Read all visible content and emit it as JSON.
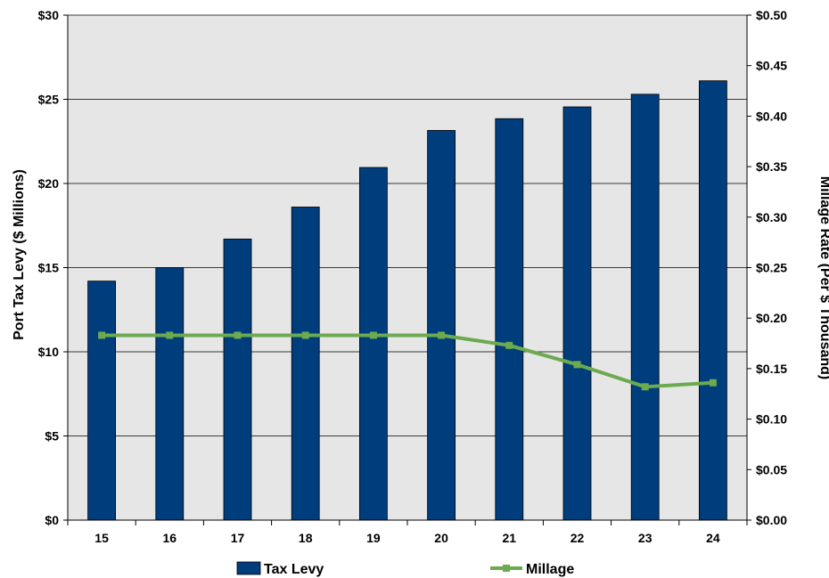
{
  "chart_data": {
    "type": "bar",
    "categories": [
      "15",
      "16",
      "17",
      "18",
      "19",
      "20",
      "21",
      "22",
      "23",
      "24"
    ],
    "series": [
      {
        "name": "Tax Levy",
        "type": "bar",
        "axis": "left",
        "values": [
          14.2,
          15.0,
          16.7,
          18.6,
          20.95,
          23.15,
          23.85,
          24.55,
          25.3,
          26.1
        ]
      },
      {
        "name": "Millage",
        "type": "line",
        "axis": "right",
        "values": [
          0.183,
          0.183,
          0.183,
          0.183,
          0.183,
          0.183,
          0.173,
          0.154,
          0.132,
          0.136
        ]
      }
    ],
    "ylabel": "Port Tax Levy ($ Millions)",
    "y2label": "Millage Rate (Per $ Thousand)",
    "ylim": [
      0,
      30
    ],
    "y2lim": [
      0,
      0.5
    ],
    "yticks": [
      "$0",
      "$5",
      "$10",
      "$15",
      "$20",
      "$25",
      "$30"
    ],
    "y2ticks": [
      "$0.00",
      "$0.05",
      "$0.10",
      "$0.15",
      "$0.20",
      "$0.25",
      "$0.30",
      "$0.35",
      "$0.40",
      "$0.45",
      "$0.50"
    ],
    "grid": true,
    "legend": "bottom",
    "colors": {
      "bar": "#003D7C",
      "line": "#6CAA4F",
      "plot_bg": "#E6E6E6"
    }
  }
}
